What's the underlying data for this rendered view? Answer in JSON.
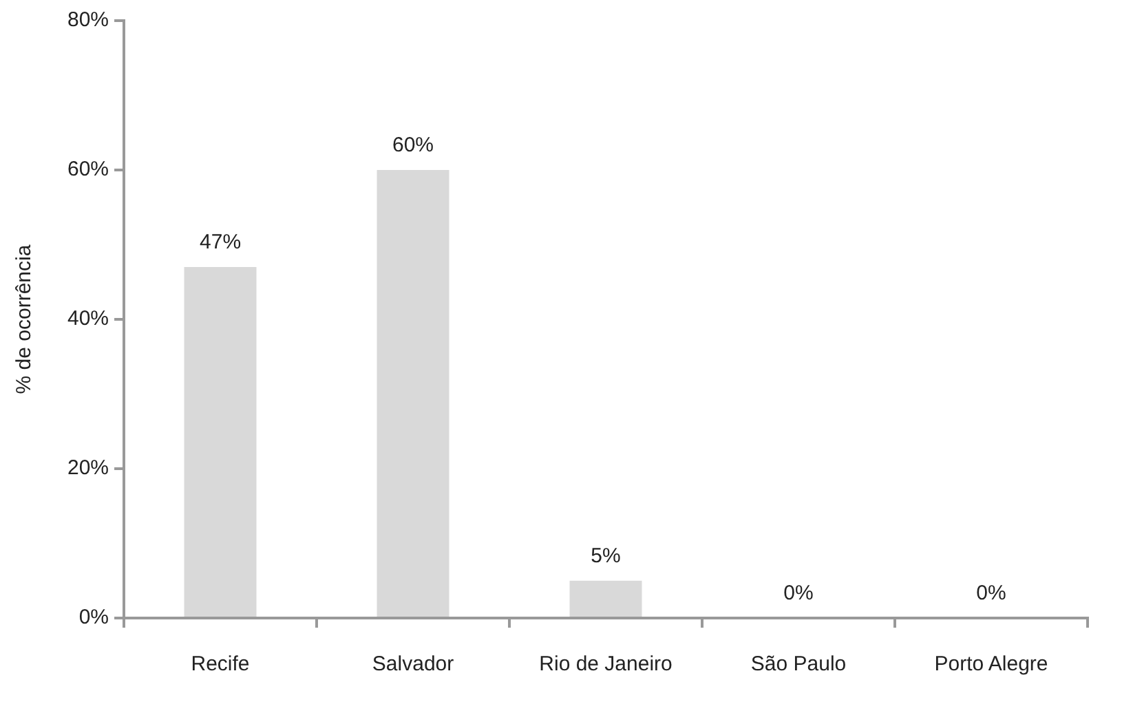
{
  "chart_data": {
    "type": "bar",
    "ylabel": "% de ocorrência",
    "categories": [
      "Recife",
      "Salvador",
      "Rio de Janeiro",
      "São Paulo",
      "Porto Alegre"
    ],
    "values": [
      47,
      60,
      5,
      0,
      0
    ],
    "value_labels": [
      "47%",
      "60%",
      "5%",
      "0%",
      "0%"
    ],
    "color": "#d9d9d9",
    "ylim": [
      0,
      80
    ],
    "yticks": [
      {
        "value": 0,
        "label": "0%"
      },
      {
        "value": 20,
        "label": "20%"
      },
      {
        "value": 40,
        "label": "40%"
      },
      {
        "value": 60,
        "label": "60%"
      },
      {
        "value": 80,
        "label": "80%"
      }
    ],
    "grid": false,
    "legend": false
  }
}
